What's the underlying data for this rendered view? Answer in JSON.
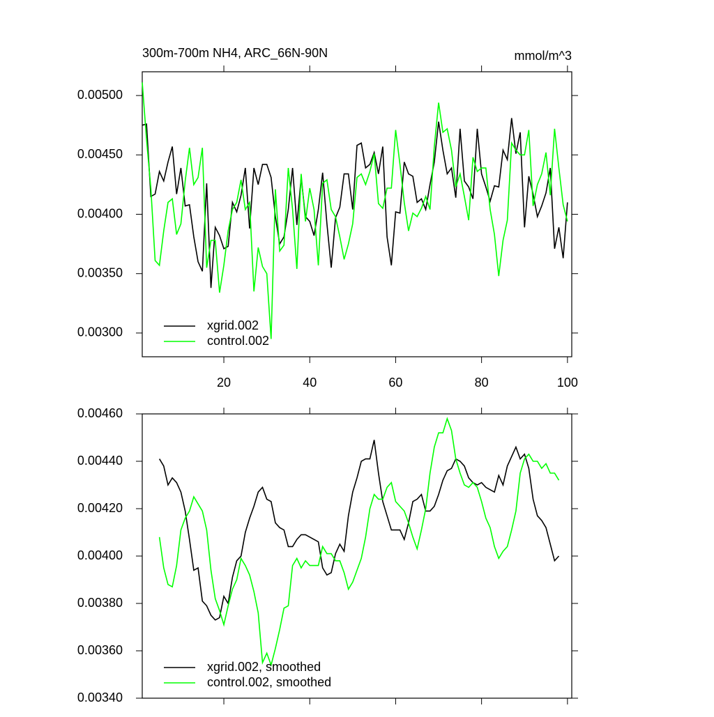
{
  "chart_data": [
    {
      "type": "line",
      "title": "300m-700m NH4, ARC_66N-90N",
      "unit_label": "mmol/m^3",
      "x": [
        1,
        2,
        3,
        4,
        5,
        6,
        7,
        8,
        9,
        10,
        11,
        12,
        13,
        14,
        15,
        16,
        17,
        18,
        19,
        20,
        21,
        22,
        23,
        24,
        25,
        26,
        27,
        28,
        29,
        30,
        31,
        32,
        33,
        34,
        35,
        36,
        37,
        38,
        39,
        40,
        41,
        42,
        43,
        44,
        45,
        46,
        47,
        48,
        49,
        50,
        51,
        52,
        53,
        54,
        55,
        56,
        57,
        58,
        59,
        60,
        61,
        62,
        63,
        64,
        65,
        66,
        67,
        68,
        69,
        70,
        71,
        72,
        73,
        74,
        75,
        76,
        77,
        78,
        79,
        80,
        81,
        82,
        83,
        84,
        85,
        86,
        87,
        88,
        89,
        90,
        91,
        92,
        93,
        94,
        95,
        96,
        97,
        98,
        99,
        100
      ],
      "series": [
        {
          "name": "xgrid.002",
          "color": "#000000",
          "values": [
            0.00475,
            0.00476,
            0.00415,
            0.00417,
            0.00436,
            0.00428,
            0.00444,
            0.00457,
            0.00417,
            0.00439,
            0.00407,
            0.00408,
            0.00381,
            0.0036,
            0.00352,
            0.00426,
            0.00338,
            0.00389,
            0.00382,
            0.00371,
            0.00373,
            0.0041,
            0.00402,
            0.00416,
            0.00439,
            0.00388,
            0.00439,
            0.00425,
            0.00442,
            0.00442,
            0.00431,
            0.00398,
            0.00375,
            0.00381,
            0.00404,
            0.00439,
            0.00391,
            0.00431,
            0.00398,
            0.00394,
            0.00382,
            0.00404,
            0.00435,
            0.00392,
            0.00355,
            0.00397,
            0.00406,
            0.00434,
            0.00434,
            0.00404,
            0.00458,
            0.0046,
            0.00439,
            0.00442,
            0.00452,
            0.00434,
            0.00457,
            0.00381,
            0.00357,
            0.00402,
            0.00401,
            0.00444,
            0.00434,
            0.00432,
            0.0041,
            0.00413,
            0.00404,
            0.00425,
            0.00444,
            0.00478,
            0.00454,
            0.00434,
            0.00439,
            0.00414,
            0.00472,
            0.00428,
            0.00423,
            0.00413,
            0.00472,
            0.00434,
            0.00423,
            0.00411,
            0.00424,
            0.00423,
            0.00454,
            0.00446,
            0.00481,
            0.00451,
            0.00469,
            0.00389,
            0.00432,
            0.00417,
            0.00398,
            0.00407,
            0.00418,
            0.00439,
            0.00371,
            0.00389,
            0.00363,
            0.0041
          ]
        },
        {
          "name": "control.002",
          "color": "#00ff00",
          "values": [
            0.00511,
            0.00463,
            0.00422,
            0.00361,
            0.00357,
            0.00386,
            0.0041,
            0.00413,
            0.00383,
            0.00392,
            0.00428,
            0.00456,
            0.00425,
            0.00431,
            0.00456,
            0.00355,
            0.00378,
            0.00378,
            0.00334,
            0.00357,
            0.00386,
            0.00404,
            0.0041,
            0.00429,
            0.00404,
            0.0041,
            0.00335,
            0.00372,
            0.00356,
            0.0035,
            0.00295,
            0.00421,
            0.00369,
            0.00374,
            0.00439,
            0.00404,
            0.00354,
            0.00434,
            0.00394,
            0.00422,
            0.00404,
            0.00357,
            0.00426,
            0.00429,
            0.00404,
            0.00398,
            0.00381,
            0.00362,
            0.00375,
            0.00392,
            0.00431,
            0.00434,
            0.00425,
            0.00436,
            0.00451,
            0.00409,
            0.00405,
            0.00422,
            0.00422,
            0.00471,
            0.00442,
            0.0041,
            0.00386,
            0.00401,
            0.00398,
            0.00405,
            0.00415,
            0.00404,
            0.00457,
            0.00494,
            0.00469,
            0.00472,
            0.00454,
            0.00423,
            0.00434,
            0.00415,
            0.00395,
            0.00448,
            0.00436,
            0.00439,
            0.00439,
            0.00404,
            0.00383,
            0.00348,
            0.00378,
            0.00395,
            0.0046,
            0.00454,
            0.0045,
            0.0045,
            0.00471,
            0.00407,
            0.00425,
            0.00434,
            0.00452,
            0.00416,
            0.00472,
            0.00439,
            0.00408,
            0.00394
          ]
        }
      ],
      "xlim": [
        1,
        101
      ],
      "xticks": [
        20,
        40,
        60,
        80,
        100
      ],
      "show_xtick_labels": true,
      "ylim": [
        0.0028,
        0.0052
      ],
      "yticks": [
        {
          "value": 0.003,
          "label": "0.00300"
        },
        {
          "value": 0.0035,
          "label": "0.00350"
        },
        {
          "value": 0.004,
          "label": "0.00400"
        },
        {
          "value": 0.0045,
          "label": "0.00450"
        },
        {
          "value": 0.005,
          "label": "0.00500"
        }
      ],
      "legend": "lower left"
    },
    {
      "type": "line",
      "x": [
        5,
        6,
        7,
        8,
        9,
        10,
        11,
        12,
        13,
        14,
        15,
        16,
        17,
        18,
        19,
        20,
        21,
        22,
        23,
        24,
        25,
        26,
        27,
        28,
        29,
        30,
        31,
        32,
        33,
        34,
        35,
        36,
        37,
        38,
        39,
        40,
        41,
        42,
        43,
        44,
        45,
        46,
        47,
        48,
        49,
        50,
        51,
        52,
        53,
        54,
        55,
        56,
        57,
        58,
        59,
        60,
        61,
        62,
        63,
        64,
        65,
        66,
        67,
        68,
        69,
        70,
        71,
        72,
        73,
        74,
        75,
        76,
        77,
        78,
        79,
        80,
        81,
        82,
        83,
        84,
        85,
        86,
        87,
        88,
        89,
        90,
        91,
        92,
        93,
        94,
        95,
        96,
        97,
        98
      ],
      "series": [
        {
          "name": "xgrid.002, smoothed",
          "color": "#000000",
          "values": [
            0.00441,
            0.00438,
            0.0043,
            0.00433,
            0.00431,
            0.00427,
            0.00419,
            0.00407,
            0.00394,
            0.00395,
            0.00381,
            0.00379,
            0.00375,
            0.00373,
            0.00374,
            0.00383,
            0.0038,
            0.00391,
            0.00398,
            0.004,
            0.0041,
            0.00416,
            0.00421,
            0.00427,
            0.00429,
            0.00424,
            0.00423,
            0.00414,
            0.00412,
            0.00411,
            0.00404,
            0.00404,
            0.00407,
            0.00409,
            0.00409,
            0.00408,
            0.00407,
            0.00406,
            0.00395,
            0.00392,
            0.00393,
            0.00401,
            0.00405,
            0.00402,
            0.00417,
            0.00427,
            0.00433,
            0.0044,
            0.00441,
            0.00441,
            0.00449,
            0.00435,
            0.00423,
            0.00417,
            0.00411,
            0.00411,
            0.00411,
            0.00407,
            0.00414,
            0.00423,
            0.00424,
            0.00426,
            0.00419,
            0.00419,
            0.00421,
            0.00426,
            0.00432,
            0.00436,
            0.00437,
            0.00441,
            0.0044,
            0.00438,
            0.00433,
            0.00431,
            0.0043,
            0.00431,
            0.00429,
            0.00428,
            0.00427,
            0.00434,
            0.0043,
            0.00438,
            0.00442,
            0.00446,
            0.00441,
            0.00443,
            0.00437,
            0.00424,
            0.00417,
            0.00415,
            0.00412,
            0.00405,
            0.00398,
            0.004
          ]
        },
        {
          "name": "control.002, smoothed",
          "color": "#00ff00",
          "values": [
            0.00408,
            0.00395,
            0.00388,
            0.00387,
            0.00396,
            0.00411,
            0.00416,
            0.00419,
            0.00425,
            0.00422,
            0.00419,
            0.00411,
            0.00394,
            0.00382,
            0.00377,
            0.00371,
            0.00379,
            0.00386,
            0.0039,
            0.00399,
            0.00396,
            0.00392,
            0.00385,
            0.00376,
            0.00355,
            0.00359,
            0.00354,
            0.00361,
            0.00369,
            0.00378,
            0.00379,
            0.00396,
            0.00399,
            0.00395,
            0.00398,
            0.00396,
            0.00396,
            0.00396,
            0.00404,
            0.00401,
            0.00401,
            0.00398,
            0.00398,
            0.00393,
            0.00386,
            0.00389,
            0.00394,
            0.00399,
            0.00408,
            0.0042,
            0.00426,
            0.00424,
            0.00424,
            0.00429,
            0.00431,
            0.00423,
            0.00421,
            0.00419,
            0.00414,
            0.00408,
            0.00403,
            0.00411,
            0.0042,
            0.00435,
            0.00446,
            0.00452,
            0.00452,
            0.00458,
            0.00453,
            0.00441,
            0.00435,
            0.0043,
            0.00429,
            0.00431,
            0.00429,
            0.00423,
            0.00416,
            0.00412,
            0.00404,
            0.00399,
            0.00402,
            0.00404,
            0.00411,
            0.00419,
            0.00435,
            0.00441,
            0.00443,
            0.0044,
            0.0044,
            0.00437,
            0.00439,
            0.00435,
            0.00435,
            0.00432
          ]
        }
      ],
      "xlim": [
        1,
        101
      ],
      "xticks": [
        20,
        40,
        60,
        80,
        100
      ],
      "show_xtick_labels": false,
      "ylim": [
        0.0034,
        0.0046
      ],
      "yticks": [
        {
          "value": 0.0034,
          "label": "0.00340"
        },
        {
          "value": 0.0036,
          "label": "0.00360"
        },
        {
          "value": 0.0038,
          "label": "0.00380"
        },
        {
          "value": 0.004,
          "label": "0.00400"
        },
        {
          "value": 0.0042,
          "label": "0.00420"
        },
        {
          "value": 0.0044,
          "label": "0.00440"
        },
        {
          "value": 0.0046,
          "label": "0.00460"
        }
      ],
      "legend": "lower left"
    }
  ]
}
